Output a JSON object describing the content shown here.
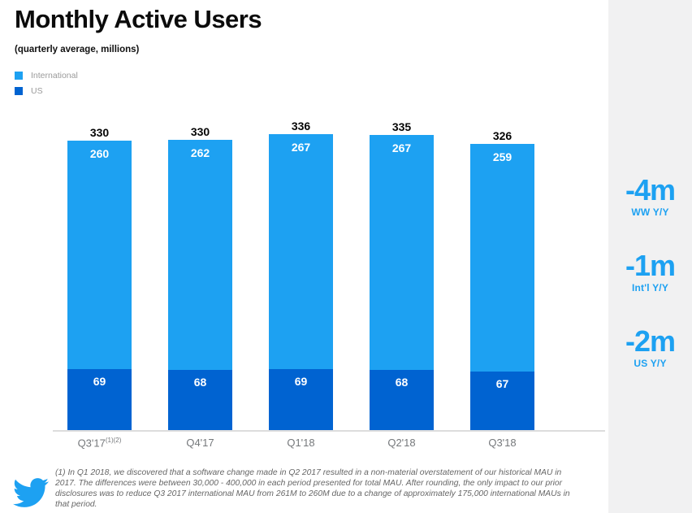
{
  "title": "Monthly Active Users",
  "subtitle": "(quarterly average, millions)",
  "legend": {
    "items": [
      {
        "label": "International",
        "color": "#1da1f2"
      },
      {
        "label": "US",
        "color": "#0063d1"
      }
    ]
  },
  "chart_data": {
    "type": "bar",
    "stacked": true,
    "categories": [
      "Q3'17",
      "Q4'17",
      "Q1'18",
      "Q2'18",
      "Q3'18"
    ],
    "category_superscripts": [
      "(1)(2)",
      "",
      "",
      "",
      ""
    ],
    "series": [
      {
        "name": "International",
        "color": "#1da1f2",
        "values": [
          260,
          262,
          267,
          267,
          259
        ]
      },
      {
        "name": "US",
        "color": "#0063d1",
        "values": [
          69,
          68,
          69,
          68,
          67
        ]
      }
    ],
    "totals": [
      330,
      330,
      336,
      335,
      326
    ],
    "title": "Monthly Active Users",
    "subtitle": "(quarterly average, millions)",
    "xlabel": "",
    "ylabel": "",
    "ylim": [
      0,
      350
    ],
    "grid": false,
    "legend_position": "top-left",
    "value_labels": "totals above bars in black, segment values in white inside bars"
  },
  "annotations": [
    {
      "value": "-4m",
      "label": "WW Y/Y"
    },
    {
      "value": "-1m",
      "label": "Int'l Y/Y"
    },
    {
      "value": "-2m",
      "label": "US Y/Y"
    }
  ],
  "footnote": {
    "text": "(1) In Q1 2018, we discovered that a software change made in Q2 2017 resulted in a non-material overstatement of our historical MAU in 2017. The differences were between 30,000 - 400,000 in each period presented for total MAU.  After rounding, the only impact to our prior disclosures was to reduce Q3 2017 international MAU from 261M to 260M due to a change of approximately 175,000 international MAUs in that period."
  },
  "colors": {
    "international": "#1da1f2",
    "us": "#0063d1",
    "annotation_blue": "#1da1f2",
    "panel_background": "#f1f1f2",
    "axis_line": "#dddddd",
    "twitter_brand": "#1da1f2"
  }
}
